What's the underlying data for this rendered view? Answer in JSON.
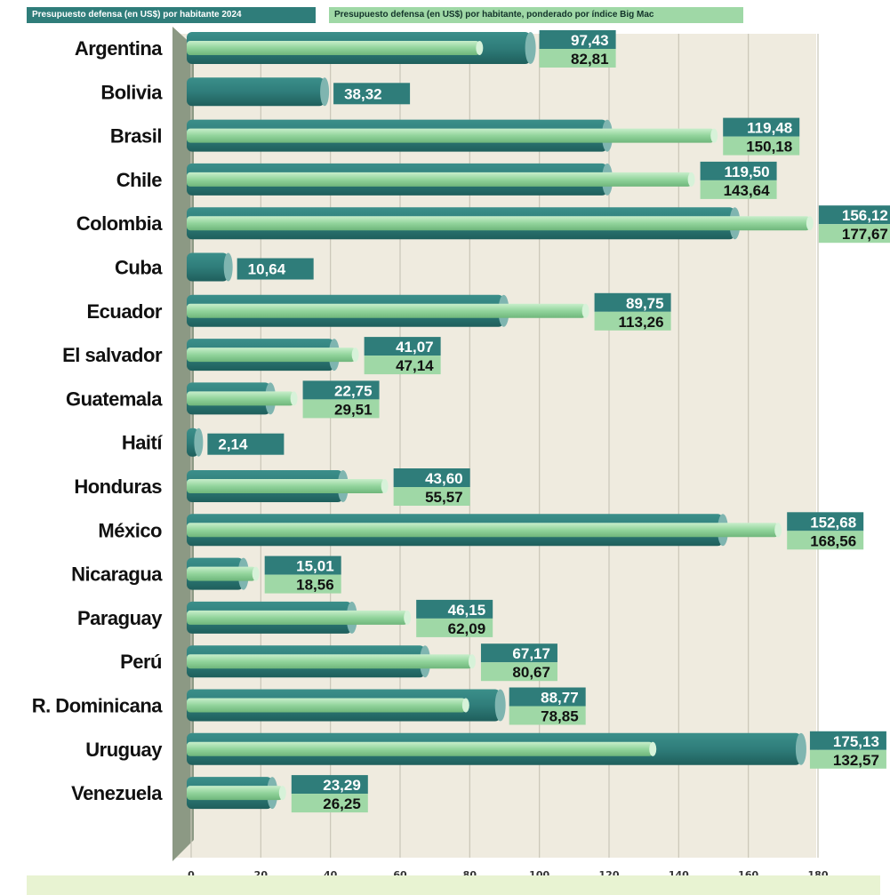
{
  "legend": {
    "series_a": "Presupuesto defensa (en US$) por habitante 2024",
    "series_b": "Presupuesto defensa (en US$) por habitante, ponderado por índice Big Mac"
  },
  "colors": {
    "series_a": "#2f7d7a",
    "series_a_dark": "#1f5f5c",
    "series_b": "#92d49c",
    "series_b_light": "#c8eecb",
    "panel": "#efebdf",
    "label_a_bg": "#2f7d7a",
    "label_b_bg": "#9fd8a6",
    "axis_wall": "#8c9984"
  },
  "chart_data": {
    "type": "bar",
    "orientation": "horizontal",
    "categories": [
      "Argentina",
      "Bolivia",
      "Brasil",
      "Chile",
      "Colombia",
      "Cuba",
      "Ecuador",
      "El salvador",
      "Guatemala",
      "Haití",
      "Honduras",
      "México",
      "Nicaragua",
      "Paraguay",
      "Perú",
      "R. Dominicana",
      "Uruguay",
      "Venezuela"
    ],
    "series": [
      {
        "name": "Presupuesto defensa (en US$) por habitante 2024",
        "values": [
          97.43,
          38.32,
          119.48,
          119.5,
          156.12,
          10.64,
          89.75,
          41.07,
          22.75,
          2.14,
          43.6,
          152.68,
          15.01,
          46.15,
          67.17,
          88.77,
          175.13,
          23.29
        ],
        "labels": [
          "97,43",
          "38,32",
          "119,48",
          "119,50",
          "156,12",
          "10,64",
          "89,75",
          "41,07",
          "22,75",
          "2,14",
          "43,60",
          "152,68",
          "15,01",
          "46,15",
          "67,17",
          "88,77",
          "175,13",
          "23,29"
        ]
      },
      {
        "name": "Presupuesto defensa (en US$) por habitante, ponderado por índice Big Mac",
        "values": [
          82.81,
          null,
          150.18,
          143.64,
          177.67,
          null,
          113.26,
          47.14,
          29.51,
          null,
          55.57,
          168.56,
          18.56,
          62.09,
          80.67,
          78.85,
          132.57,
          26.25
        ],
        "labels": [
          "82,81",
          null,
          "150,18",
          "143,64",
          "177,67",
          null,
          "113,26",
          "47,14",
          "29,51",
          null,
          "55,57",
          "168,56",
          "18,56",
          "62,09",
          "80,67",
          "78,85",
          "132,57",
          "26,25"
        ]
      }
    ],
    "x_ticks": [
      "0",
      "20",
      "40",
      "60",
      "80",
      "100",
      "120",
      "140",
      "160",
      "180"
    ],
    "xlim": [
      0,
      180
    ],
    "grid": true,
    "legend_position": "top"
  }
}
